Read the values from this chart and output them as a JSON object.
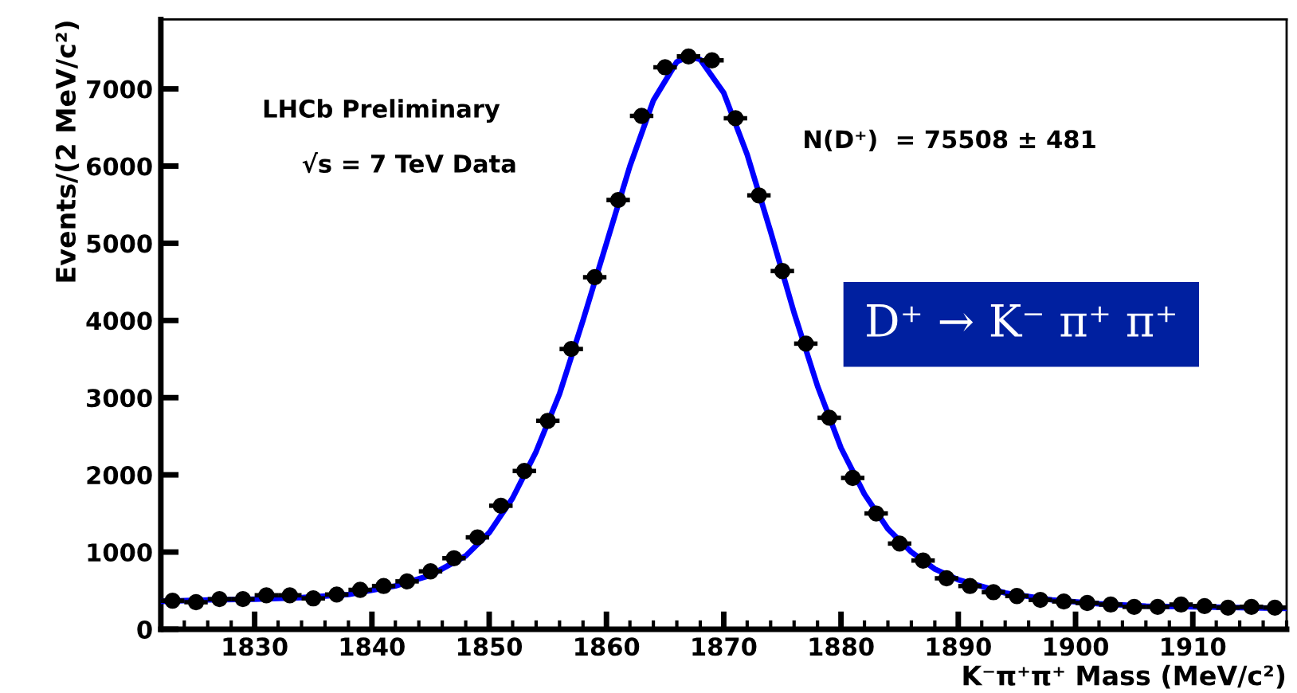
{
  "chart_data": {
    "type": "scatter",
    "xlabel": "K⁻π⁺π⁺ Mass (MeV/c²)",
    "ylabel": "Events/(2 MeV/c²)",
    "annotations": [
      "LHCb Preliminary",
      "√s = 7 TeV Data",
      "N(D⁺)  = 75508 ± 481",
      "D⁺ → K⁻ π⁺ π⁺"
    ],
    "xlim": [
      1822,
      1918
    ],
    "xticks": [
      1830,
      1840,
      1850,
      1860,
      1870,
      1880,
      1890,
      1900,
      1910
    ],
    "ylim": [
      0,
      7900
    ],
    "yticks": [
      0,
      1000,
      2000,
      3000,
      4000,
      5000,
      6000,
      7000
    ],
    "grid": false,
    "legend": false,
    "marker": "circle",
    "series": [
      {
        "color": "#000000",
        "x": [
          1823,
          1825,
          1827,
          1829,
          1831,
          1833,
          1835,
          1837,
          1839,
          1841,
          1843,
          1845,
          1847,
          1849,
          1851,
          1853,
          1855,
          1857,
          1859,
          1861,
          1863,
          1865,
          1867,
          1869,
          1871,
          1873,
          1875,
          1877,
          1879,
          1881,
          1883,
          1885,
          1887,
          1889,
          1891,
          1893,
          1895,
          1897,
          1899,
          1901,
          1903,
          1905,
          1907,
          1909,
          1911,
          1913,
          1915,
          1917
        ],
        "values": [
          370,
          350,
          390,
          390,
          440,
          440,
          400,
          450,
          510,
          560,
          620,
          750,
          920,
          1190,
          1600,
          2050,
          2700,
          3630,
          4560,
          5560,
          6650,
          7280,
          7420,
          7370,
          6620,
          5620,
          4640,
          3700,
          2740,
          1960,
          1500,
          1110,
          890,
          660,
          560,
          480,
          430,
          380,
          360,
          340,
          320,
          290,
          290,
          320,
          300,
          280,
          290,
          280
        ],
        "xerrors": [
          1,
          1,
          1,
          1,
          1,
          1,
          1,
          1,
          1,
          1,
          1,
          1,
          1,
          1,
          1,
          1,
          1,
          1,
          1,
          1,
          1,
          1,
          1,
          1,
          1,
          1,
          1,
          1,
          1,
          1,
          1,
          1,
          1,
          1,
          1,
          1,
          1,
          1,
          1,
          1,
          1,
          1,
          1,
          1,
          1,
          1,
          1,
          1
        ]
      },
      {
        "type": "line",
        "color": "#0000ff",
        "line_style": "solid",
        "marker": "none",
        "x": [
          1822,
          1826,
          1830,
          1834,
          1838,
          1842,
          1845,
          1848,
          1850,
          1852,
          1854,
          1856,
          1858,
          1860,
          1862,
          1864,
          1866,
          1867,
          1868,
          1870,
          1872,
          1874,
          1876,
          1878,
          1880,
          1882,
          1884,
          1886,
          1888,
          1890,
          1894,
          1898,
          1902,
          1906,
          1910,
          1914,
          1918
        ],
        "values": [
          360,
          380,
          390,
          410,
          450,
          560,
          700,
          950,
          1250,
          1700,
          2300,
          3050,
          4000,
          5000,
          6000,
          6850,
          7350,
          7420,
          7380,
          6950,
          6150,
          5150,
          4100,
          3150,
          2350,
          1750,
          1300,
          1000,
          780,
          640,
          470,
          380,
          330,
          300,
          290,
          280,
          270
        ]
      }
    ]
  }
}
